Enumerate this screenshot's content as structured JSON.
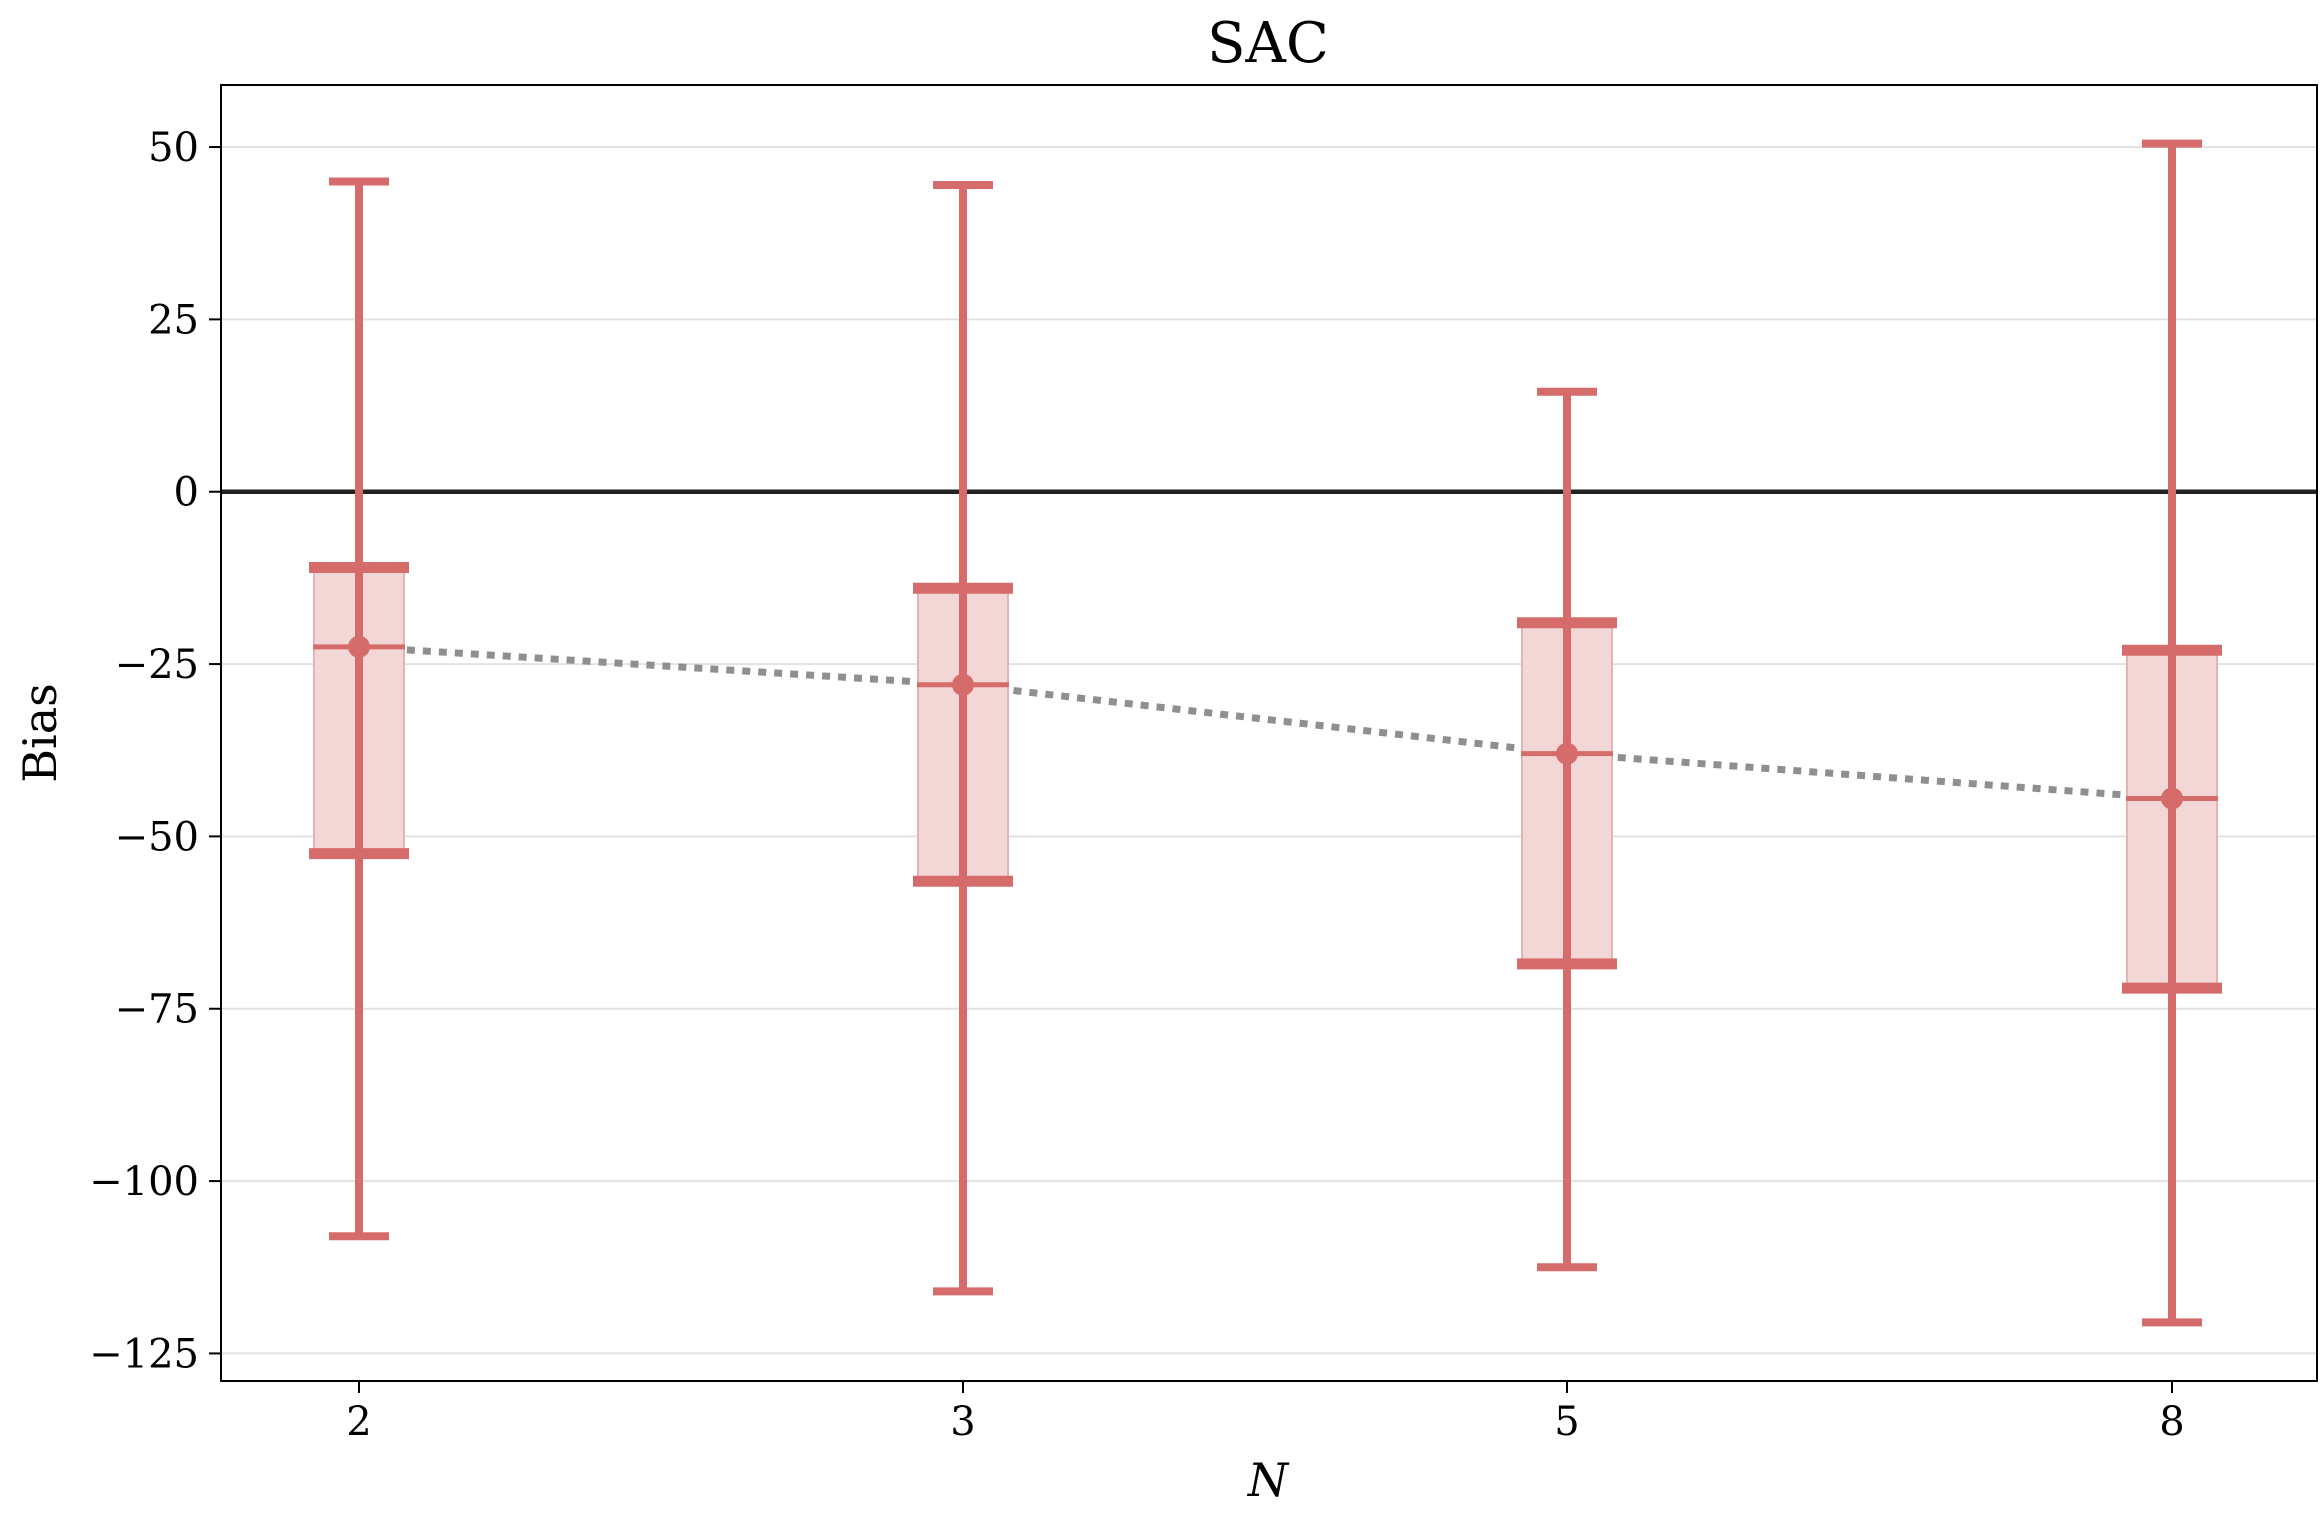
{
  "chart_data": {
    "type": "box",
    "title": "SAC",
    "xlabel": "N",
    "ylabel": "Bias",
    "categories": [
      "2",
      "3",
      "5",
      "8"
    ],
    "yticks": [
      50,
      25,
      0,
      -25,
      -50,
      -75,
      -100,
      -125
    ],
    "ytick_labels": [
      "50",
      "25",
      "0",
      "−25",
      "−50",
      "−75",
      "−100",
      "−125"
    ],
    "ylim": [
      -129,
      59
    ],
    "grid": "horizontal",
    "reference_line": 0,
    "series": [
      {
        "boxes": [
          {
            "category": "2",
            "whisker_low": -108,
            "q1": -52.5,
            "median": -22.5,
            "mean": -22.5,
            "q3": -11,
            "whisker_high": 45
          },
          {
            "category": "3",
            "whisker_low": -116,
            "q1": -56.5,
            "median": -28,
            "mean": -28,
            "q3": -14,
            "whisker_high": 44.5
          },
          {
            "category": "5",
            "whisker_low": -112.5,
            "q1": -68.5,
            "median": -38,
            "mean": -38,
            "q3": -19,
            "whisker_high": 14.5
          },
          {
            "category": "8",
            "whisker_low": -120.5,
            "q1": -72,
            "median": -44.5,
            "mean": -44.5,
            "q3": -23,
            "whisker_high": 50.5
          }
        ]
      }
    ],
    "colors": {
      "box_edge": "#d66b6b",
      "box_fill": "#f3d7d7",
      "mean_line": "#8f8f8f",
      "zero_line": "#222222",
      "grid": "#e2e2e2"
    }
  }
}
